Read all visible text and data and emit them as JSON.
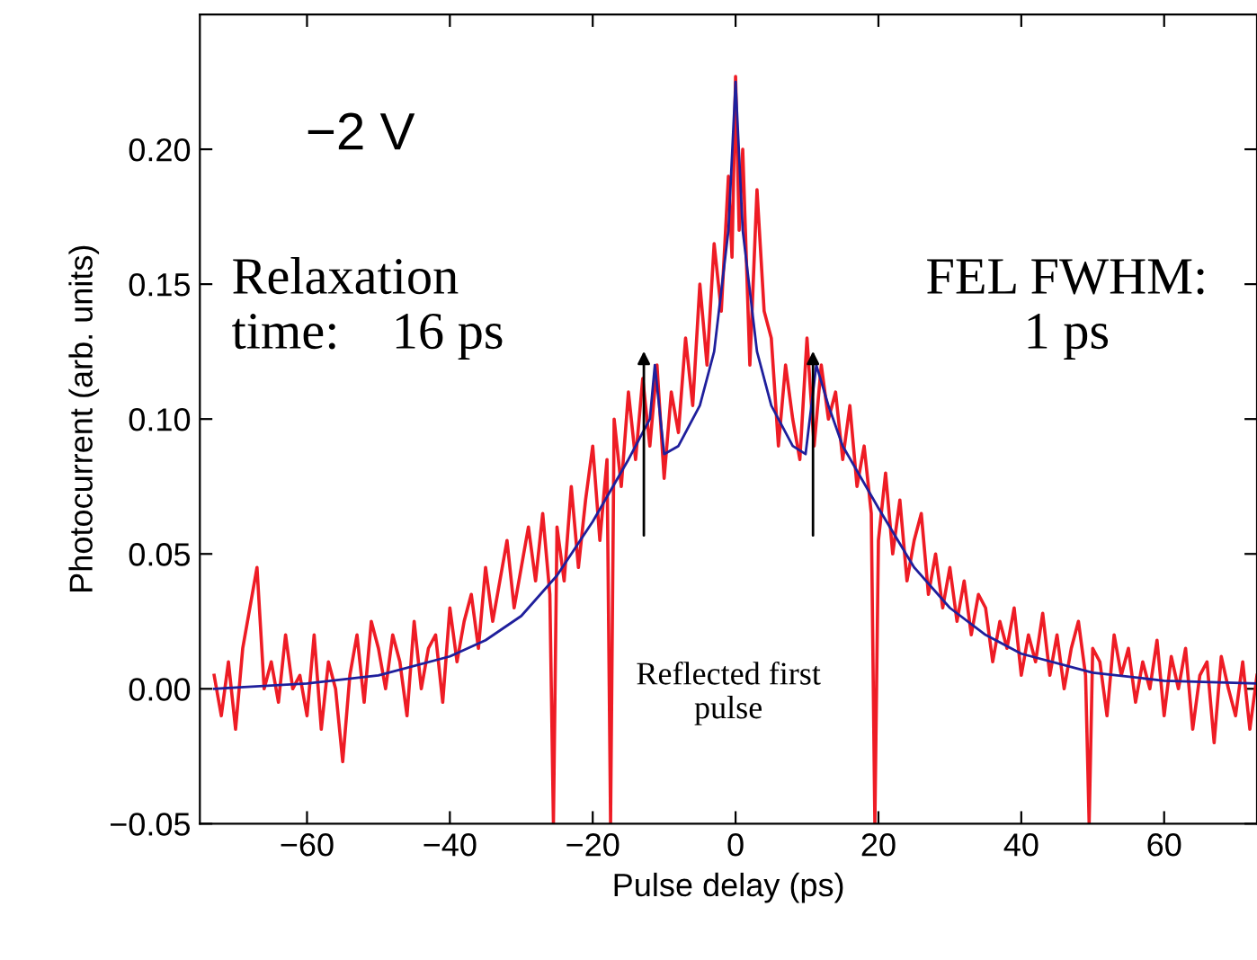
{
  "chart_data": {
    "type": "line",
    "xlabel": "Pulse delay (ps)",
    "ylabel": "Photocurrent (arb. units)",
    "xlim": [
      -75,
      73
    ],
    "ylim": [
      -0.05,
      0.25
    ],
    "xticks": [
      -60,
      -40,
      -20,
      0,
      20,
      40,
      60
    ],
    "yticks": [
      {
        "value": -0.05,
        "label": "−0.05"
      },
      {
        "value": 0,
        "label": "0.00"
      },
      {
        "value": 0.05,
        "label": "0.05"
      },
      {
        "value": 0.1,
        "label": "0.10"
      },
      {
        "value": 0.15,
        "label": "0.15"
      },
      {
        "value": 0.2,
        "label": "0.20"
      }
    ],
    "marker": "none",
    "line_style": "solid",
    "series": [
      {
        "color": "#ee1c25",
        "x": [
          -73,
          -72,
          -71,
          -70,
          -69,
          -68,
          -67,
          -66,
          -65,
          -64,
          -63,
          -62,
          -61,
          -60,
          -59,
          -58,
          -57,
          -56,
          -55,
          -54,
          -53,
          -52,
          -51,
          -50,
          -49,
          -48,
          -47,
          -46,
          -45,
          -44,
          -43,
          -42,
          -41,
          -40,
          -39,
          -38,
          -37,
          -36,
          -35,
          -34,
          -33,
          -32,
          -31,
          -30,
          -29,
          -28,
          -27,
          -26,
          -25.5,
          -25,
          -24,
          -23,
          -22,
          -21,
          -20,
          -19,
          -18,
          -17.5,
          -17,
          -16,
          -15,
          -14,
          -13,
          -12,
          -11,
          -10,
          -9,
          -8,
          -7,
          -6,
          -5,
          -4,
          -3,
          -2,
          -1,
          -0.5,
          0,
          0.5,
          1,
          2,
          3,
          4,
          5,
          6,
          7,
          8,
          9,
          10,
          11,
          12,
          13,
          14,
          15,
          16,
          17,
          18,
          19,
          19.5,
          20,
          21,
          22,
          23,
          24,
          25,
          26,
          27,
          28,
          29,
          30,
          31,
          32,
          33,
          34,
          35,
          36,
          37,
          38,
          39,
          40,
          41,
          42,
          43,
          44,
          45,
          46,
          47,
          48,
          49,
          49.5,
          50,
          51,
          52,
          53,
          54,
          55,
          56,
          57,
          58,
          59,
          60,
          61,
          62,
          63,
          64,
          65,
          66,
          67,
          68,
          69,
          70,
          71,
          72,
          73
        ],
        "values": [
          0.005,
          -0.01,
          0.01,
          -0.015,
          0.015,
          0.03,
          0.045,
          0.0,
          0.01,
          -0.005,
          0.02,
          0.0,
          0.005,
          -0.01,
          0.02,
          -0.015,
          0.01,
          0.0,
          -0.027,
          0.005,
          0.02,
          -0.005,
          0.025,
          0.015,
          0.0,
          0.02,
          0.01,
          -0.01,
          0.025,
          0.0,
          0.015,
          0.02,
          -0.005,
          0.03,
          0.01,
          0.025,
          0.035,
          0.015,
          0.045,
          0.025,
          0.04,
          0.055,
          0.03,
          0.045,
          0.06,
          0.04,
          0.065,
          0.035,
          -0.05,
          0.06,
          0.04,
          0.075,
          0.045,
          0.07,
          0.09,
          0.055,
          0.085,
          -0.05,
          0.1,
          0.075,
          0.11,
          0.085,
          0.115,
          0.09,
          0.12,
          0.078,
          0.11,
          0.095,
          0.13,
          0.105,
          0.15,
          0.12,
          0.165,
          0.14,
          0.19,
          0.16,
          0.227,
          0.17,
          0.2,
          0.12,
          0.185,
          0.14,
          0.13,
          0.09,
          0.12,
          0.1,
          0.085,
          0.13,
          0.09,
          0.12,
          0.1,
          0.11,
          0.085,
          0.105,
          0.075,
          0.09,
          0.065,
          -0.05,
          0.055,
          0.08,
          0.05,
          0.07,
          0.04,
          0.055,
          0.065,
          0.035,
          0.05,
          0.03,
          0.045,
          0.025,
          0.04,
          0.02,
          0.035,
          0.03,
          0.01,
          0.025,
          0.015,
          0.03,
          0.005,
          0.02,
          0.01,
          0.028,
          0.005,
          0.02,
          0.0,
          0.015,
          0.025,
          0.005,
          -0.05,
          0.015,
          0.01,
          -0.01,
          0.02,
          0.005,
          0.015,
          -0.005,
          0.01,
          0.0,
          0.018,
          -0.01,
          0.012,
          0.0,
          0.015,
          -0.015,
          0.005,
          0.01,
          -0.02,
          0.012,
          0.0,
          -0.01,
          0.01,
          -0.015,
          0.005
        ]
      },
      {
        "color": "#1f1f9c",
        "x": [
          -73,
          -60,
          -50,
          -40,
          -35,
          -30,
          -25,
          -20,
          -15,
          -12,
          -11.3,
          -10,
          -8,
          -5,
          -3,
          -1,
          0,
          1,
          3,
          5,
          8,
          9.8,
          11.3,
          13,
          15,
          20,
          25,
          30,
          35,
          40,
          50,
          60,
          73
        ],
        "values": [
          0.0,
          0.002,
          0.005,
          0.012,
          0.018,
          0.027,
          0.042,
          0.062,
          0.085,
          0.1,
          0.12,
          0.087,
          0.09,
          0.105,
          0.125,
          0.17,
          0.225,
          0.17,
          0.125,
          0.105,
          0.09,
          0.087,
          0.12,
          0.105,
          0.09,
          0.067,
          0.045,
          0.03,
          0.02,
          0.013,
          0.006,
          0.003,
          0.002
        ]
      }
    ],
    "annotations": [
      "−2 V",
      "Relaxation\ntime:    16 ps",
      "FEL FWHM:\n1 ps",
      "Reflected first\npulse"
    ]
  }
}
